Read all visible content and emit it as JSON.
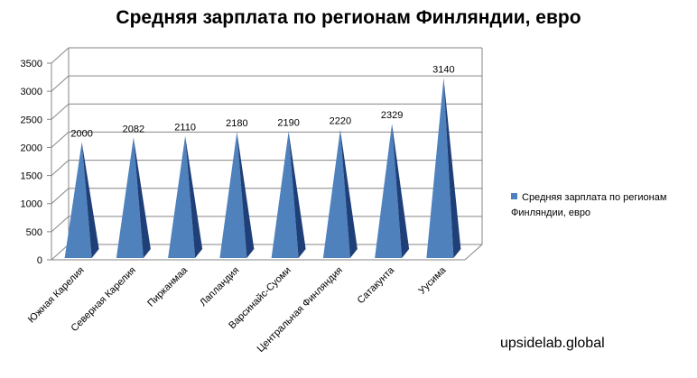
{
  "chart_data": {
    "type": "bar",
    "title": "Средняя зарплата по регионам Финляндии, евро",
    "categories": [
      "Южная Карелия",
      "Северная Карелия",
      "Пирканмаа",
      "Лапландия",
      "Варсинайс-Суоми",
      "Центральная Финляндия",
      "Сатакунта",
      "Уусима"
    ],
    "series": [
      {
        "name": "Средняя зарплата по регионам Финляндии, евро",
        "values": [
          2000,
          2082,
          2110,
          2180,
          2190,
          2220,
          2329,
          3140
        ]
      }
    ],
    "ylim": [
      0,
      3500
    ],
    "yticks": [
      0,
      500,
      1000,
      1500,
      2000,
      2500,
      3000,
      3500
    ],
    "grid": true,
    "legend_position": "right",
    "colors": {
      "front": "#4f81bd",
      "side": "#1f3f78",
      "grid": "#868686"
    }
  },
  "watermark": "upsidelab.global"
}
